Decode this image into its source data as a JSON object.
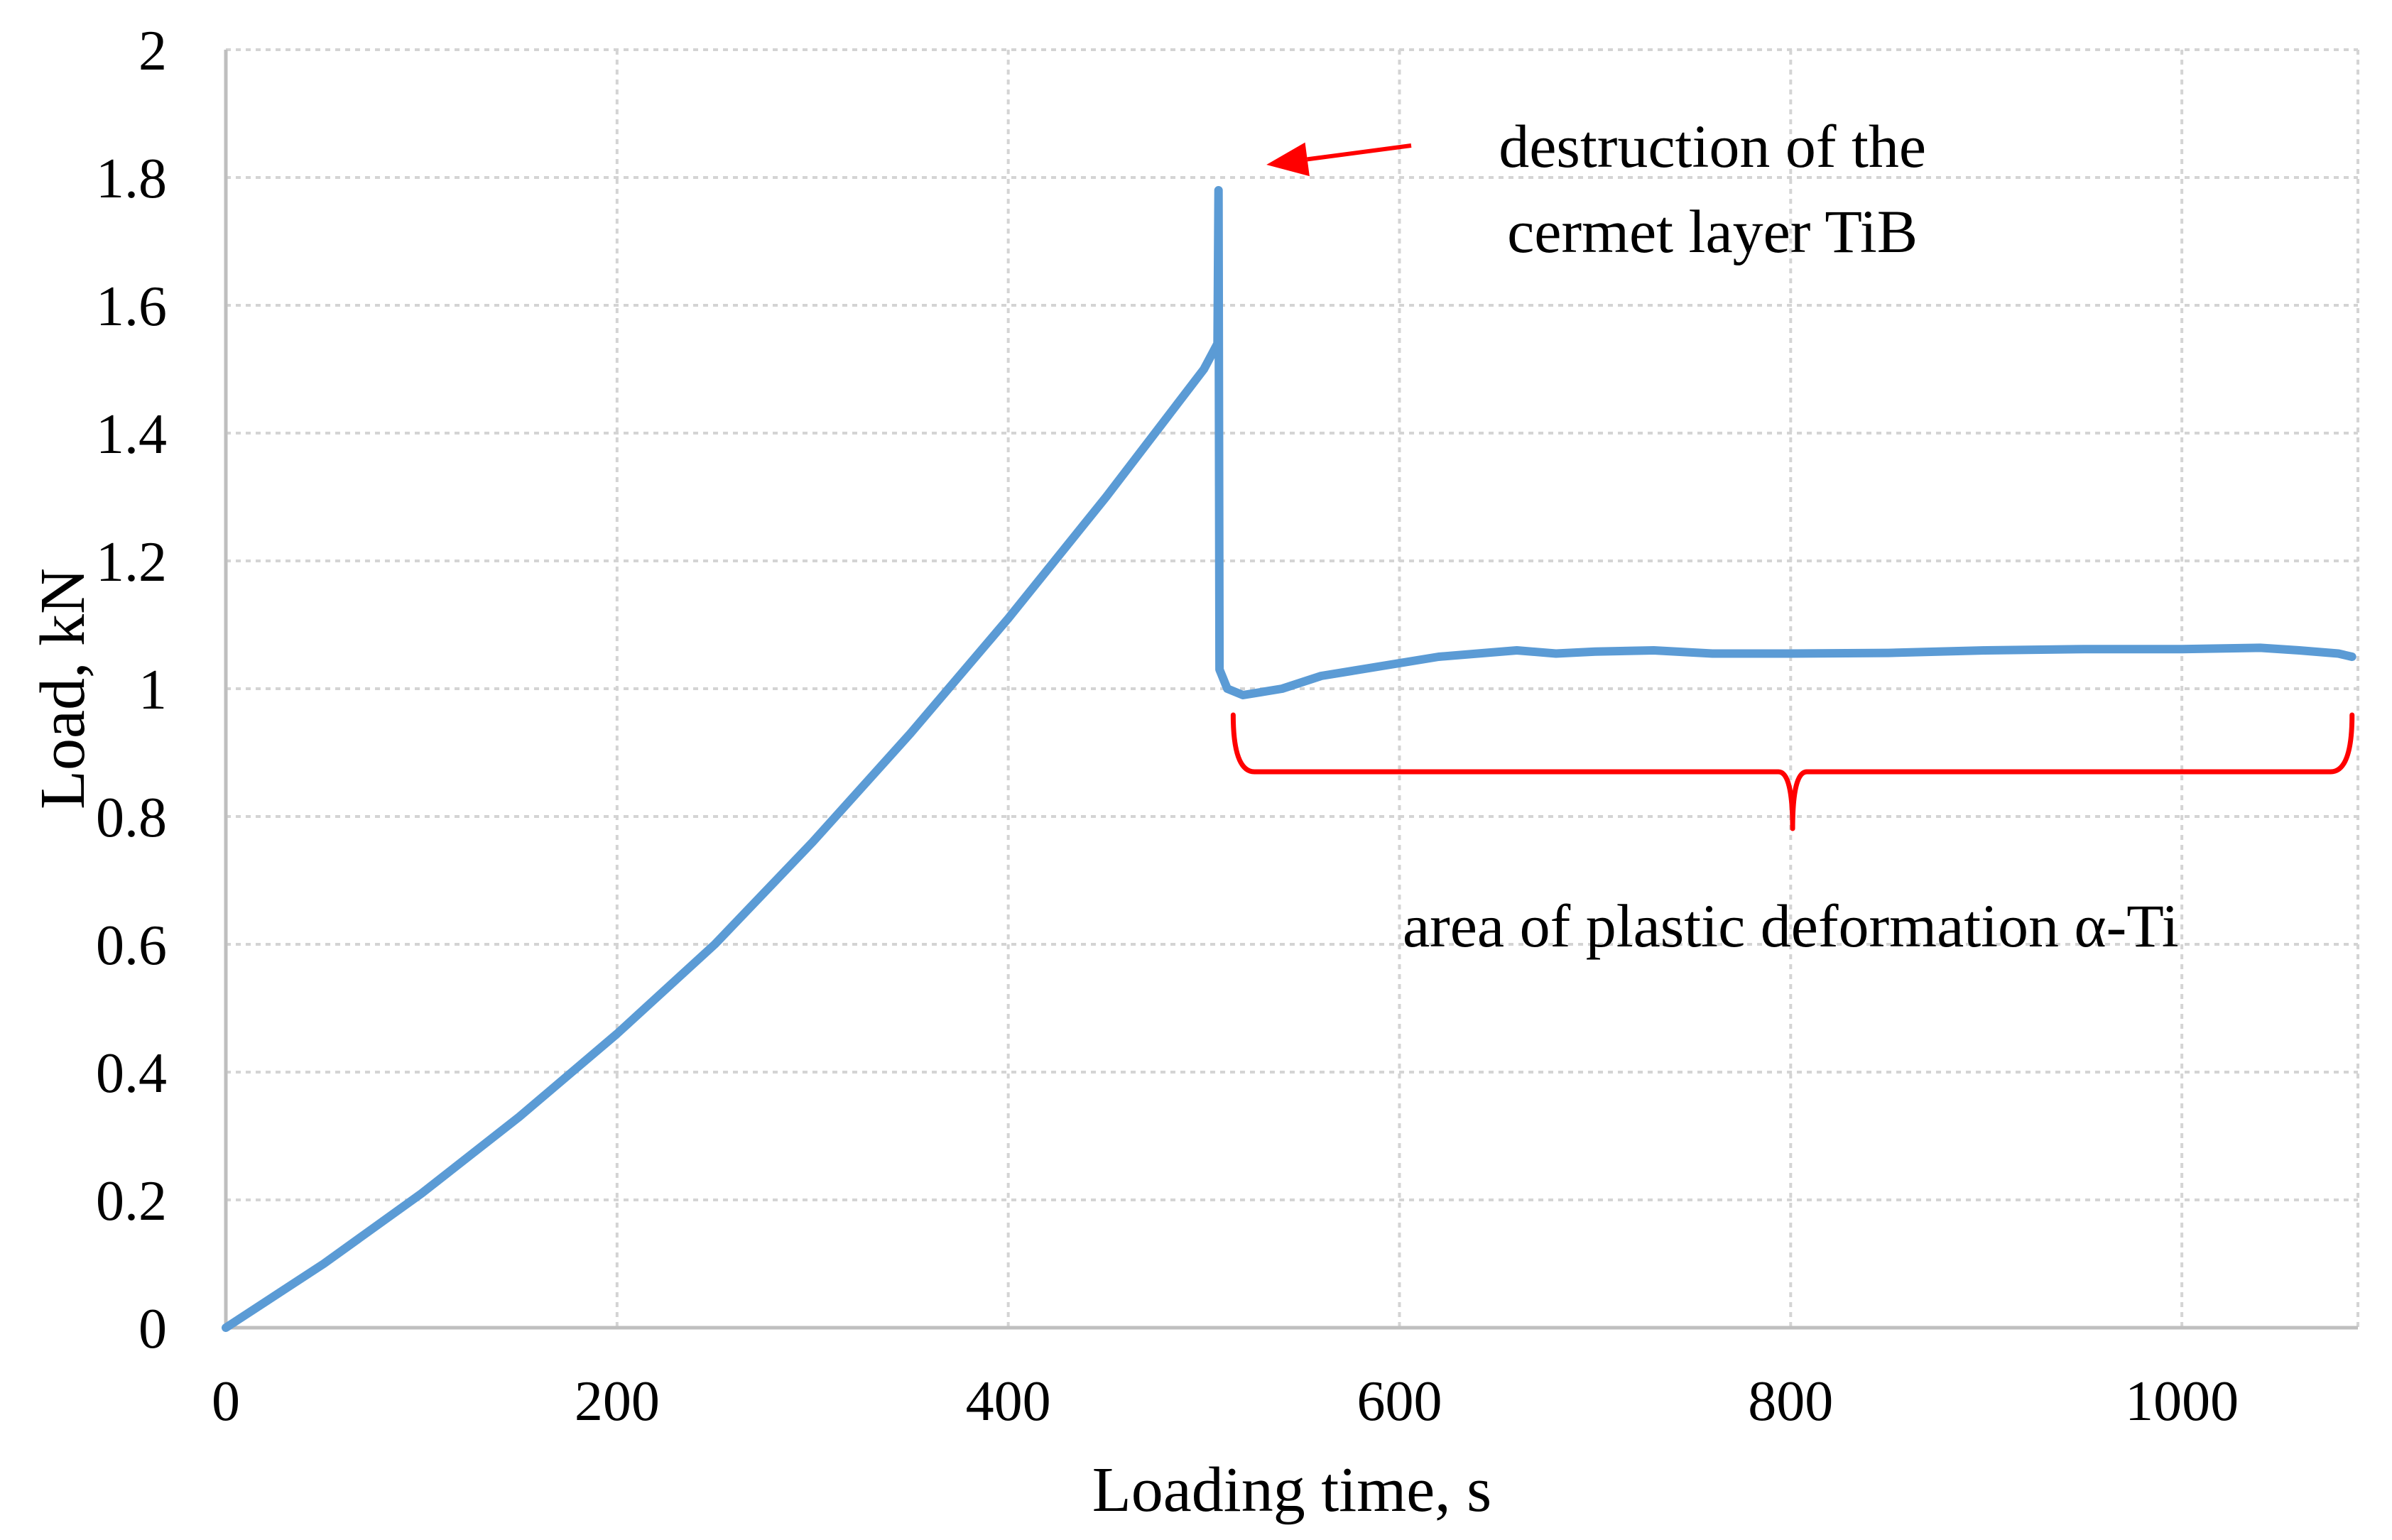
{
  "chart_data": {
    "type": "line",
    "title": "",
    "xlabel": "Loading time, s",
    "ylabel": "Load, kN",
    "xlim": [
      0,
      1090
    ],
    "ylim": [
      0,
      2
    ],
    "x_ticks": [
      0,
      200,
      400,
      600,
      800,
      1000
    ],
    "y_ticks": [
      0,
      0.2,
      0.4,
      0.6,
      0.8,
      1,
      1.2,
      1.4,
      1.6,
      1.8,
      2
    ],
    "x_tick_labels": [
      "0",
      "200",
      "400",
      "600",
      "800",
      "1000"
    ],
    "y_tick_labels": [
      "0",
      "0.2",
      "0.4",
      "0.6",
      "0.8",
      "1",
      "1.2",
      "1.4",
      "1.6",
      "1.8",
      "2"
    ],
    "grid": true,
    "legend": "none",
    "series": [
      {
        "color": "#5b9bd5",
        "x": [
          0,
          50,
          100,
          150,
          200,
          250,
          300,
          350,
          400,
          450,
          500,
          507,
          507.5,
          508,
          512,
          520,
          540,
          560,
          580,
          600,
          620,
          640,
          660,
          680,
          700,
          730,
          760,
          800,
          850,
          900,
          950,
          1000,
          1040,
          1060,
          1080,
          1087
        ],
        "y": [
          0,
          0.1,
          0.21,
          0.33,
          0.46,
          0.6,
          0.76,
          0.93,
          1.11,
          1.3,
          1.5,
          1.54,
          1.78,
          1.03,
          1.0,
          0.99,
          1.0,
          1.02,
          1.03,
          1.04,
          1.05,
          1.055,
          1.06,
          1.055,
          1.058,
          1.06,
          1.055,
          1.055,
          1.056,
          1.06,
          1.062,
          1.062,
          1.064,
          1.06,
          1.055,
          1.05
        ]
      }
    ],
    "annotations": [
      {
        "name": "destruction",
        "lines": [
          "destruction of the",
          "cermet layer TiB"
        ],
        "color": "#ff0000",
        "arrow_from": [
          606,
          1.85
        ],
        "arrow_to": [
          532,
          1.82
        ],
        "text_anchor": [
          760,
          1.85
        ]
      },
      {
        "name": "plastic",
        "lines": [
          "area of plastic deformation α-Ti"
        ],
        "color": "#ff0000",
        "brace_x": [
          515,
          1087
        ],
        "brace_y": 0.87,
        "text_anchor": [
          800,
          0.63
        ]
      }
    ]
  }
}
